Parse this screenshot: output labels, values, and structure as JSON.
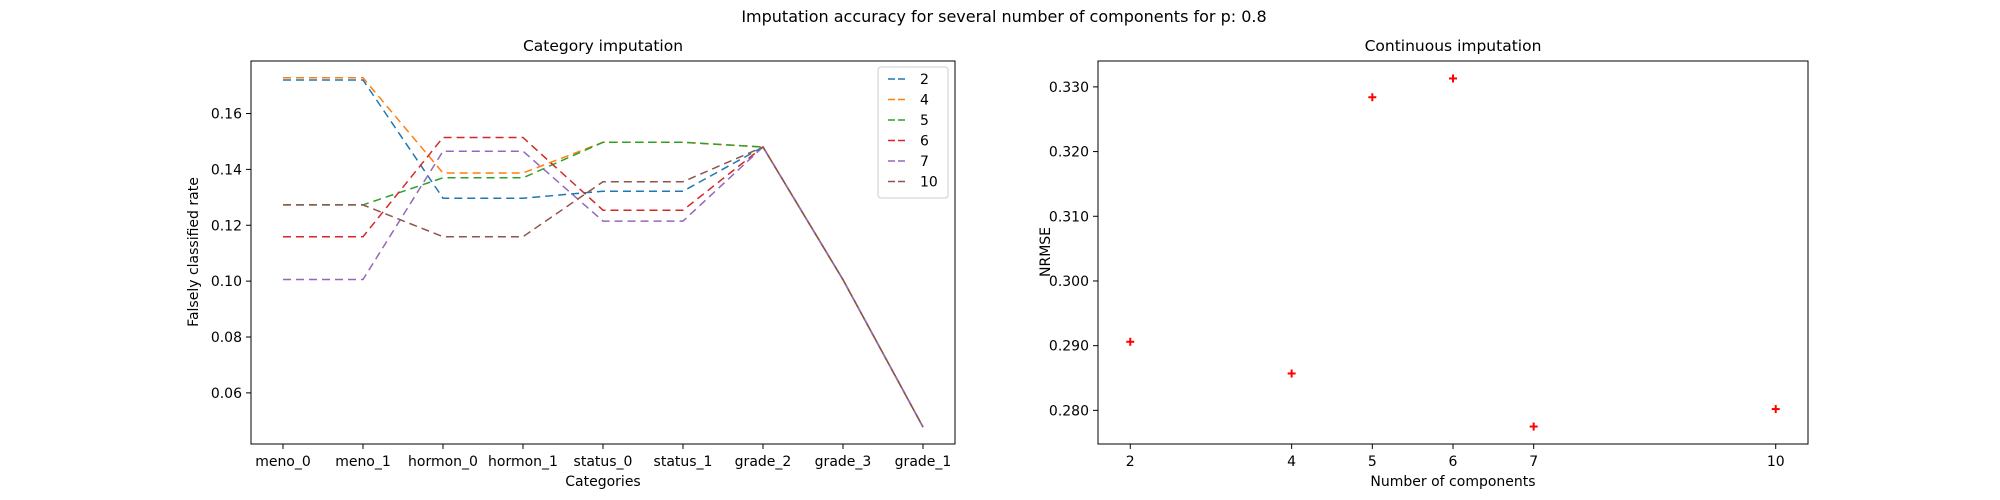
{
  "suptitle": "Imputation accuracy for several number of components for p: 0.8",
  "chart_data": [
    {
      "type": "line",
      "title": "Category imputation",
      "xlabel": "Categories",
      "ylabel": "Falsely classified rate",
      "categories": [
        "meno_0",
        "meno_1",
        "hormon_0",
        "hormon_1",
        "status_0",
        "status_1",
        "grade_2",
        "grade_3",
        "grade_1"
      ],
      "ylim": [
        0.0417,
        0.1788
      ],
      "yticks": [
        "0.06",
        "0.08",
        "0.10",
        "0.12",
        "0.14",
        "0.16"
      ],
      "line_style": "dashed",
      "legend_position": "top-right",
      "series": [
        {
          "name": "2",
          "color": "#1f77b4",
          "values": [
            0.172,
            0.172,
            0.1297,
            0.1297,
            0.1322,
            0.1322,
            0.148,
            0.1005,
            0.0478
          ]
        },
        {
          "name": "4",
          "color": "#ff7f0e",
          "values": [
            0.1728,
            0.1728,
            0.1387,
            0.1387,
            0.1497,
            0.1497,
            0.148,
            0.1005,
            0.0478
          ]
        },
        {
          "name": "5",
          "color": "#2ca02c",
          "values": [
            0.1273,
            0.1273,
            0.137,
            0.137,
            0.1497,
            0.1497,
            0.148,
            0.1005,
            0.0478
          ]
        },
        {
          "name": "6",
          "color": "#d62728",
          "values": [
            0.1159,
            0.1159,
            0.1514,
            0.1514,
            0.1254,
            0.1254,
            0.148,
            0.1005,
            0.0478
          ]
        },
        {
          "name": "7",
          "color": "#9467bd",
          "values": [
            0.1006,
            0.1006,
            0.1465,
            0.1465,
            0.1215,
            0.1215,
            0.148,
            0.1005,
            0.0478
          ]
        },
        {
          "name": "10",
          "color": "#8c564b",
          "values": [
            0.1273,
            0.1273,
            0.1159,
            0.1159,
            0.1356,
            0.1356,
            0.148,
            0.1005,
            0.0478
          ]
        }
      ]
    },
    {
      "type": "scatter",
      "title": "Continuous imputation",
      "xlabel": "Number of components",
      "ylabel": "NRMSE",
      "marker": "+",
      "color": "#ff0000",
      "xlim": [
        1.6,
        10.4
      ],
      "ylim": [
        0.2748,
        0.334
      ],
      "xticks": [
        "2",
        "4",
        "5",
        "6",
        "7",
        "10"
      ],
      "yticks": [
        "0.280",
        "0.290",
        "0.300",
        "0.310",
        "0.320",
        "0.330"
      ],
      "x": [
        2,
        4,
        5,
        6,
        7,
        10
      ],
      "y": [
        0.2906,
        0.2857,
        0.3284,
        0.3313,
        0.2775,
        0.2802
      ]
    }
  ]
}
